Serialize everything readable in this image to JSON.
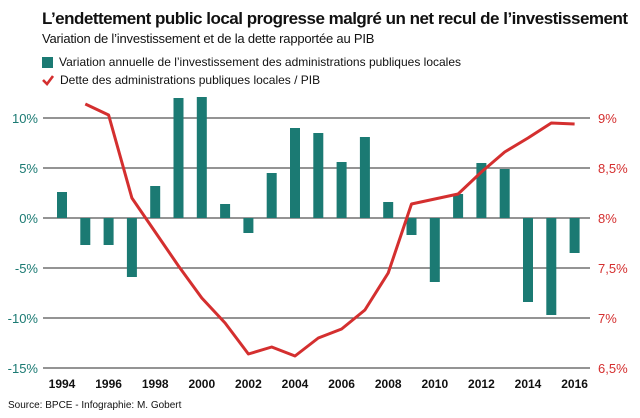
{
  "title": "L’endettement public local progresse malgré un net recul de l’investissement",
  "subtitle": "Variation de l’investissement et de la dette rapportée au PIB",
  "source": "Source: BPCE - Infographie: M. Gobert",
  "colors": {
    "bars": "#1b7a73",
    "line": "#d42f2f",
    "grid": "#555555"
  },
  "legend": [
    {
      "label": "Variation annuelle de l’investissement des administrations publiques locales",
      "icon": "square-icon"
    },
    {
      "label": "Dette des administrations publiques locales / PIB",
      "icon": "checkmark-icon"
    }
  ],
  "chart_data": {
    "type": "bar+line",
    "categories": [
      1994,
      1995,
      1996,
      1997,
      1998,
      1999,
      2000,
      2001,
      2002,
      2003,
      2004,
      2005,
      2006,
      2007,
      2008,
      2009,
      2010,
      2011,
      2012,
      2013,
      2014,
      2015,
      2016
    ],
    "x_tick_labels": [
      "1994",
      "1996",
      "1998",
      "2000",
      "2002",
      "2004",
      "2006",
      "2008",
      "2010",
      "2012",
      "2014",
      "2016"
    ],
    "series": [
      {
        "name": "Variation annuelle de l’investissement des administrations publiques locales",
        "type": "bar",
        "axis": "left",
        "values": [
          2.6,
          -2.7,
          -2.7,
          -5.9,
          3.2,
          12.0,
          12.1,
          1.4,
          -1.5,
          4.5,
          9.0,
          8.5,
          5.6,
          8.1,
          1.6,
          -1.7,
          -6.4,
          2.4,
          5.5,
          4.9,
          -8.4,
          -9.7,
          -3.5
        ]
      },
      {
        "name": "Dette des administrations publiques locales / PIB",
        "type": "line",
        "axis": "right",
        "values": [
          null,
          9.14,
          9.03,
          8.2,
          7.86,
          7.52,
          7.2,
          6.95,
          6.64,
          6.71,
          6.62,
          6.8,
          6.89,
          7.08,
          7.45,
          8.14,
          8.19,
          8.24,
          8.46,
          8.66,
          8.8,
          8.95,
          8.94
        ]
      }
    ],
    "y_left": {
      "ylim": [
        -15,
        12
      ],
      "ticks": [
        10,
        5,
        0,
        -5,
        -10,
        -15
      ],
      "tick_labels": [
        "10%",
        "5%",
        "0%",
        "-5%",
        "-10%",
        "-15%"
      ]
    },
    "y_right": {
      "ylim": [
        6.5,
        9.2
      ],
      "ticks": [
        9,
        8.5,
        8,
        7.5,
        7,
        6.5
      ],
      "tick_labels": [
        "9%",
        "8,5%",
        "8%",
        "7,5%",
        "7%",
        "6,5%"
      ]
    },
    "grid": true,
    "legend_placement": "top-left"
  }
}
